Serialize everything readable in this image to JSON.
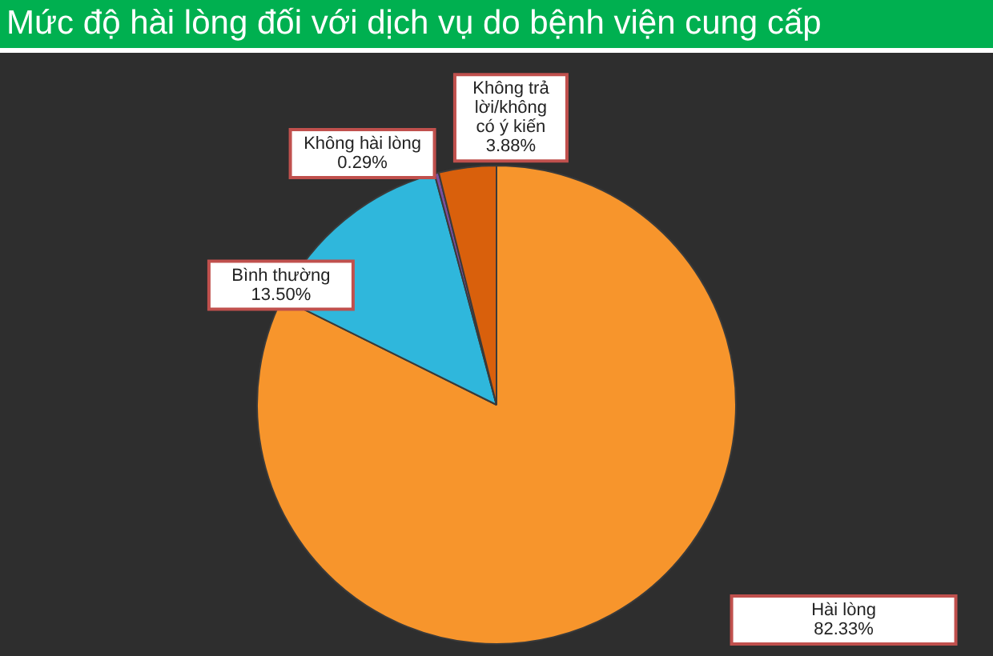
{
  "chart_data": {
    "type": "pie",
    "title": "Mức độ hài lòng đối với dịch vụ do bệnh viện cung cấp",
    "categories": [
      "Hài lòng",
      "Bình thường",
      "Không hài lòng",
      "Không trả lời/không có ý kiến"
    ],
    "values": [
      82.33,
      13.5,
      0.29,
      3.88
    ],
    "colors": [
      "#f7952c",
      "#2fb7dc",
      "#7b4fa0",
      "#d9600c"
    ],
    "value_labels": [
      "82.33%",
      "13.50%",
      "0.29%",
      "3.88%"
    ],
    "legend": false
  }
}
